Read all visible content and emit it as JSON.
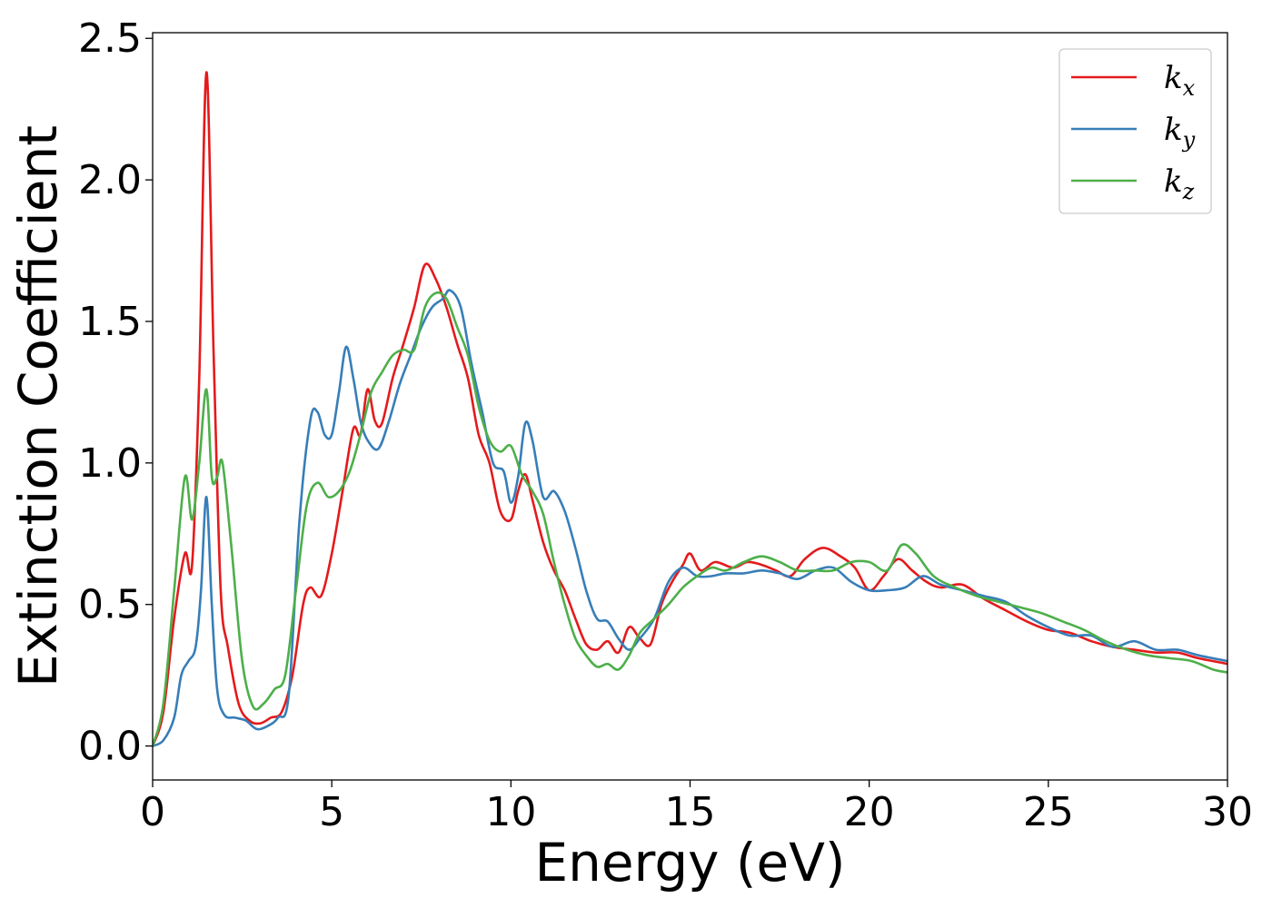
{
  "chart_data": {
    "type": "line",
    "xlabel": "Energy (eV)",
    "ylabel": "Extinction Coefficient",
    "xlim": [
      0,
      30
    ],
    "ylim": [
      -0.12,
      2.52
    ],
    "xticks": [
      0,
      5,
      10,
      15,
      20,
      25,
      30
    ],
    "xtick_labels": [
      "0",
      "5",
      "10",
      "15",
      "20",
      "25",
      "30"
    ],
    "yticks": [
      0.0,
      0.5,
      1.0,
      1.5,
      2.0,
      2.5
    ],
    "ytick_labels": [
      "0.0",
      "0.5",
      "1.0",
      "1.5",
      "2.0",
      "2.5"
    ],
    "grid": false,
    "legend_position": "top-right",
    "series": [
      {
        "name": "k_x",
        "label_main": "k",
        "label_sub": "x",
        "color": "#e41a1c",
        "x": [
          0,
          0.3,
          0.6,
          0.9,
          1.1,
          1.3,
          1.5,
          1.7,
          1.9,
          2.1,
          2.4,
          2.7,
          3.0,
          3.3,
          3.6,
          3.9,
          4.2,
          4.4,
          4.7,
          5.0,
          5.3,
          5.6,
          5.8,
          6.0,
          6.2,
          6.4,
          6.7,
          7.0,
          7.3,
          7.6,
          7.9,
          8.2,
          8.5,
          8.8,
          9.1,
          9.4,
          9.7,
          10.0,
          10.2,
          10.4,
          10.6,
          10.9,
          11.2,
          11.5,
          11.8,
          12.1,
          12.4,
          12.7,
          13.0,
          13.3,
          13.6,
          13.9,
          14.2,
          14.5,
          14.8,
          15.0,
          15.3,
          15.7,
          16.2,
          16.6,
          17.0,
          17.4,
          17.8,
          18.2,
          18.7,
          19.2,
          19.6,
          20.0,
          20.4,
          20.8,
          21.2,
          21.6,
          22.0,
          22.6,
          23.2,
          23.8,
          24.4,
          25.0,
          25.6,
          26.2,
          26.8,
          27.4,
          28.0,
          28.6,
          29.2,
          30.0
        ],
        "values": [
          0.0,
          0.12,
          0.45,
          0.68,
          0.64,
          1.3,
          2.38,
          1.4,
          0.55,
          0.35,
          0.15,
          0.09,
          0.08,
          0.1,
          0.12,
          0.25,
          0.5,
          0.56,
          0.53,
          0.68,
          0.9,
          1.12,
          1.1,
          1.26,
          1.15,
          1.14,
          1.3,
          1.42,
          1.55,
          1.7,
          1.65,
          1.55,
          1.42,
          1.3,
          1.1,
          1.0,
          0.83,
          0.8,
          0.9,
          0.96,
          0.87,
          0.72,
          0.62,
          0.55,
          0.45,
          0.36,
          0.34,
          0.37,
          0.33,
          0.42,
          0.38,
          0.36,
          0.5,
          0.58,
          0.64,
          0.68,
          0.62,
          0.65,
          0.63,
          0.65,
          0.64,
          0.62,
          0.6,
          0.66,
          0.7,
          0.67,
          0.63,
          0.55,
          0.6,
          0.66,
          0.62,
          0.58,
          0.56,
          0.57,
          0.52,
          0.48,
          0.44,
          0.41,
          0.4,
          0.37,
          0.35,
          0.34,
          0.33,
          0.33,
          0.31,
          0.29
        ]
      },
      {
        "name": "k_y",
        "label_main": "k",
        "label_sub": "y",
        "color": "#377eb8",
        "x": [
          0,
          0.3,
          0.6,
          0.8,
          1.0,
          1.2,
          1.35,
          1.5,
          1.65,
          1.8,
          2.0,
          2.3,
          2.6,
          2.9,
          3.2,
          3.5,
          3.8,
          4.1,
          4.4,
          4.6,
          4.8,
          5.0,
          5.2,
          5.4,
          5.6,
          5.8,
          6.0,
          6.3,
          6.6,
          6.9,
          7.2,
          7.5,
          7.8,
          8.1,
          8.3,
          8.6,
          8.9,
          9.2,
          9.5,
          9.8,
          10.0,
          10.2,
          10.4,
          10.6,
          10.9,
          11.2,
          11.5,
          11.8,
          12.1,
          12.4,
          12.7,
          13.0,
          13.3,
          13.6,
          14.0,
          14.4,
          14.8,
          15.2,
          15.6,
          16.0,
          16.5,
          17.0,
          17.5,
          18.0,
          18.5,
          19.0,
          19.5,
          20.0,
          20.5,
          21.0,
          21.5,
          22.0,
          22.6,
          23.2,
          23.8,
          24.4,
          25.0,
          25.6,
          26.2,
          26.8,
          27.4,
          28.0,
          28.6,
          29.2,
          30.0
        ],
        "values": [
          0.0,
          0.02,
          0.1,
          0.25,
          0.3,
          0.35,
          0.55,
          0.88,
          0.5,
          0.2,
          0.11,
          0.1,
          0.09,
          0.06,
          0.07,
          0.1,
          0.18,
          0.8,
          1.15,
          1.18,
          1.1,
          1.1,
          1.25,
          1.41,
          1.3,
          1.15,
          1.08,
          1.05,
          1.15,
          1.28,
          1.38,
          1.48,
          1.55,
          1.58,
          1.61,
          1.55,
          1.35,
          1.18,
          1.0,
          0.97,
          0.86,
          0.95,
          1.14,
          1.08,
          0.88,
          0.9,
          0.83,
          0.7,
          0.55,
          0.45,
          0.44,
          0.38,
          0.34,
          0.38,
          0.45,
          0.58,
          0.63,
          0.6,
          0.6,
          0.61,
          0.61,
          0.62,
          0.61,
          0.59,
          0.62,
          0.63,
          0.58,
          0.55,
          0.55,
          0.56,
          0.6,
          0.57,
          0.55,
          0.53,
          0.51,
          0.46,
          0.42,
          0.39,
          0.39,
          0.35,
          0.37,
          0.34,
          0.34,
          0.32,
          0.3
        ]
      },
      {
        "name": "k_z",
        "label_main": "k",
        "label_sub": "z",
        "color": "#4daf4a",
        "x": [
          0,
          0.3,
          0.6,
          0.9,
          1.1,
          1.3,
          1.5,
          1.65,
          1.8,
          1.95,
          2.2,
          2.5,
          2.8,
          3.1,
          3.4,
          3.7,
          4.0,
          4.3,
          4.6,
          4.9,
          5.2,
          5.5,
          5.8,
          6.1,
          6.4,
          6.7,
          7.0,
          7.3,
          7.6,
          7.9,
          8.2,
          8.5,
          8.8,
          9.1,
          9.4,
          9.7,
          10.0,
          10.3,
          10.6,
          10.9,
          11.2,
          11.5,
          11.8,
          12.1,
          12.4,
          12.7,
          13.0,
          13.3,
          13.6,
          14.0,
          14.4,
          14.8,
          15.2,
          15.6,
          16.0,
          16.5,
          17.0,
          17.5,
          18.0,
          18.5,
          19.0,
          19.5,
          20.0,
          20.5,
          20.9,
          21.3,
          21.8,
          22.4,
          23.0,
          23.6,
          24.2,
          24.8,
          25.4,
          26.0,
          26.6,
          27.2,
          27.8,
          28.4,
          29.0,
          29.6,
          30.0
        ],
        "values": [
          0.0,
          0.15,
          0.55,
          0.95,
          0.8,
          1.0,
          1.26,
          0.95,
          0.95,
          1.0,
          0.7,
          0.3,
          0.14,
          0.15,
          0.2,
          0.25,
          0.55,
          0.85,
          0.93,
          0.88,
          0.9,
          0.97,
          1.1,
          1.25,
          1.32,
          1.38,
          1.4,
          1.4,
          1.55,
          1.6,
          1.58,
          1.48,
          1.38,
          1.2,
          1.08,
          1.04,
          1.06,
          0.96,
          0.9,
          0.82,
          0.65,
          0.5,
          0.38,
          0.32,
          0.28,
          0.29,
          0.27,
          0.32,
          0.4,
          0.45,
          0.5,
          0.56,
          0.6,
          0.63,
          0.62,
          0.65,
          0.67,
          0.65,
          0.62,
          0.62,
          0.62,
          0.65,
          0.65,
          0.62,
          0.71,
          0.68,
          0.6,
          0.56,
          0.53,
          0.51,
          0.49,
          0.47,
          0.44,
          0.41,
          0.37,
          0.34,
          0.32,
          0.31,
          0.3,
          0.27,
          0.26
        ]
      }
    ]
  }
}
